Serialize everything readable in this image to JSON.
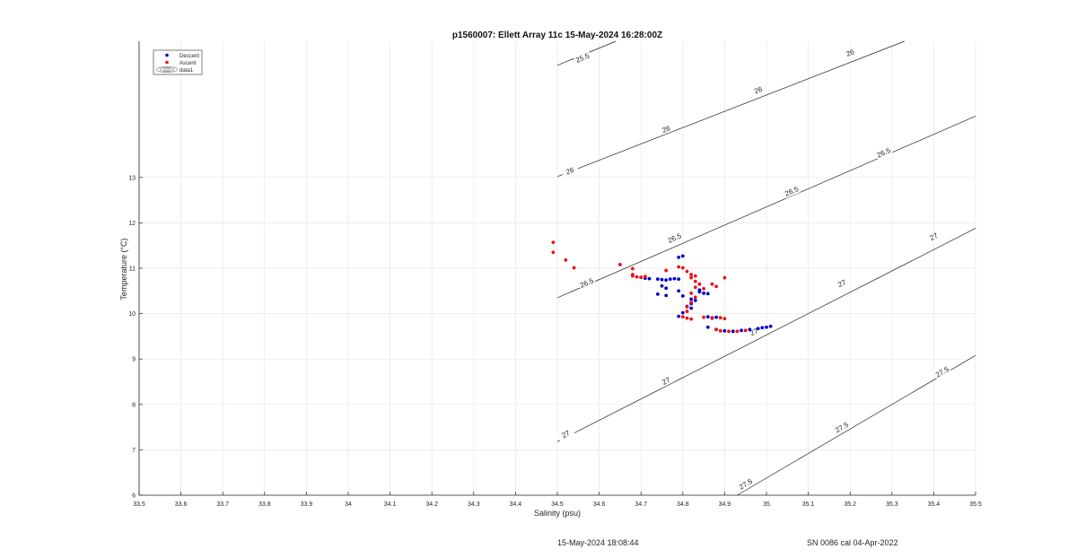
{
  "chart_data": {
    "type": "scatter",
    "title": "p1560007: Ellett Array 11c 15-May-2024 16:28:00Z",
    "xlabel": "Salinity (psu)",
    "ylabel": "Temperature (°C)",
    "xlim": [
      33.5,
      35.5
    ],
    "ylim": [
      6,
      16
    ],
    "xticks": [
      33.5,
      33.6,
      33.7,
      33.8,
      33.9,
      34,
      34.1,
      34.2,
      34.3,
      34.4,
      34.5,
      34.6,
      34.7,
      34.8,
      34.9,
      35,
      35.1,
      35.2,
      35.3,
      35.4,
      35.5
    ],
    "yticks": [
      6,
      7,
      8,
      9,
      10,
      11,
      12,
      13
    ],
    "grid": true,
    "legend": {
      "position": "top-left",
      "entries": [
        {
          "label": "Descent",
          "color": "#0000cc",
          "marker": "dot"
        },
        {
          "label": "Ascent",
          "color": "#ee1111",
          "marker": "dot"
        },
        {
          "label": "data1",
          "color": "#555555",
          "marker": "contour"
        }
      ]
    },
    "series": [
      {
        "name": "Descent",
        "color": "#0000cc",
        "points": [
          [
            34.7,
            10.8
          ],
          [
            34.71,
            10.78
          ],
          [
            34.72,
            10.77
          ],
          [
            34.74,
            10.76
          ],
          [
            34.75,
            10.75
          ],
          [
            34.76,
            10.74
          ],
          [
            34.77,
            10.76
          ],
          [
            34.78,
            10.77
          ],
          [
            34.79,
            10.76
          ],
          [
            34.79,
            11.24
          ],
          [
            34.8,
            11.27
          ],
          [
            34.75,
            10.61
          ],
          [
            34.76,
            10.56
          ],
          [
            34.79,
            10.5
          ],
          [
            34.74,
            10.43
          ],
          [
            34.76,
            10.4
          ],
          [
            34.8,
            10.39
          ],
          [
            34.84,
            10.48
          ],
          [
            34.85,
            10.45
          ],
          [
            34.84,
            10.52
          ],
          [
            34.86,
            10.44
          ],
          [
            34.82,
            10.32
          ],
          [
            34.83,
            10.29
          ],
          [
            34.82,
            10.22
          ],
          [
            34.81,
            10.16
          ],
          [
            34.82,
            10.12
          ],
          [
            34.8,
            10.02
          ],
          [
            34.79,
            9.94
          ],
          [
            34.86,
            9.93
          ],
          [
            34.87,
            9.9
          ],
          [
            34.88,
            9.92
          ],
          [
            34.86,
            9.7
          ],
          [
            34.88,
            9.65
          ],
          [
            34.9,
            9.62
          ],
          [
            34.92,
            9.61
          ],
          [
            34.94,
            9.63
          ],
          [
            34.96,
            9.65
          ],
          [
            34.98,
            9.67
          ],
          [
            34.99,
            9.69
          ],
          [
            35.0,
            9.7
          ],
          [
            35.01,
            9.72
          ]
        ]
      },
      {
        "name": "Ascent",
        "color": "#ee1111",
        "points": [
          [
            34.49,
            11.57
          ],
          [
            34.49,
            11.35
          ],
          [
            34.52,
            11.18
          ],
          [
            34.54,
            11.01
          ],
          [
            34.65,
            11.08
          ],
          [
            34.68,
            10.99
          ],
          [
            34.68,
            10.86
          ],
          [
            34.68,
            10.83
          ],
          [
            34.69,
            10.81
          ],
          [
            34.7,
            10.8
          ],
          [
            34.71,
            10.82
          ],
          [
            34.79,
            11.03
          ],
          [
            34.8,
            11.01
          ],
          [
            34.76,
            10.95
          ],
          [
            34.81,
            10.93
          ],
          [
            34.82,
            10.86
          ],
          [
            34.83,
            10.83
          ],
          [
            34.82,
            10.79
          ],
          [
            34.83,
            10.71
          ],
          [
            34.84,
            10.65
          ],
          [
            34.87,
            10.65
          ],
          [
            34.88,
            10.6
          ],
          [
            34.9,
            10.79
          ],
          [
            34.85,
            10.55
          ],
          [
            34.83,
            10.58
          ],
          [
            34.82,
            10.45
          ],
          [
            34.83,
            10.36
          ],
          [
            34.82,
            10.25
          ],
          [
            34.81,
            10.15
          ],
          [
            34.81,
            10.05
          ],
          [
            34.8,
            9.93
          ],
          [
            34.81,
            9.9
          ],
          [
            34.82,
            9.88
          ],
          [
            34.85,
            9.92
          ],
          [
            34.87,
            9.91
          ],
          [
            34.89,
            9.91
          ],
          [
            34.9,
            9.89
          ],
          [
            34.88,
            9.65
          ],
          [
            34.89,
            9.62
          ],
          [
            34.91,
            9.61
          ],
          [
            34.93,
            9.61
          ],
          [
            34.95,
            9.63
          ]
        ]
      }
    ],
    "contours": [
      {
        "label": "25.5",
        "points": [
          [
            34.5,
            15.47
          ],
          [
            34.64,
            16.0
          ]
        ],
        "label_positions": [
          [
            34.56,
            15.64
          ]
        ]
      },
      {
        "label": "26",
        "points": [
          [
            34.5,
            13.02
          ],
          [
            35.33,
            16.0
          ]
        ],
        "label_positions": [
          [
            34.53,
            13.15
          ],
          [
            34.76,
            14.07
          ],
          [
            34.98,
            14.93
          ],
          [
            35.2,
            15.75
          ]
        ]
      },
      {
        "label": "26.5",
        "points": [
          [
            34.5,
            10.35
          ],
          [
            35.5,
            14.35
          ]
        ],
        "label_positions": [
          [
            34.57,
            10.68
          ],
          [
            34.78,
            11.67
          ],
          [
            35.06,
            12.7
          ],
          [
            35.28,
            13.55
          ]
        ]
      },
      {
        "label": "27",
        "points": [
          [
            34.5,
            7.18
          ],
          [
            35.5,
            11.88
          ]
        ],
        "label_positions": [
          [
            34.52,
            7.35
          ],
          [
            34.76,
            8.52
          ],
          [
            34.97,
            9.6
          ],
          [
            35.18,
            10.67
          ],
          [
            35.4,
            11.7
          ]
        ]
      },
      {
        "label": "27.5",
        "points": [
          [
            34.93,
            6.0
          ],
          [
            35.5,
            9.08
          ]
        ],
        "label_positions": [
          [
            34.95,
            6.25
          ],
          [
            35.18,
            7.5
          ],
          [
            35.42,
            8.72
          ]
        ]
      }
    ]
  },
  "footer": {
    "left": "15-May-2024 18:08:44",
    "right": "SN 0086 cal 04-Apr-2022"
  }
}
